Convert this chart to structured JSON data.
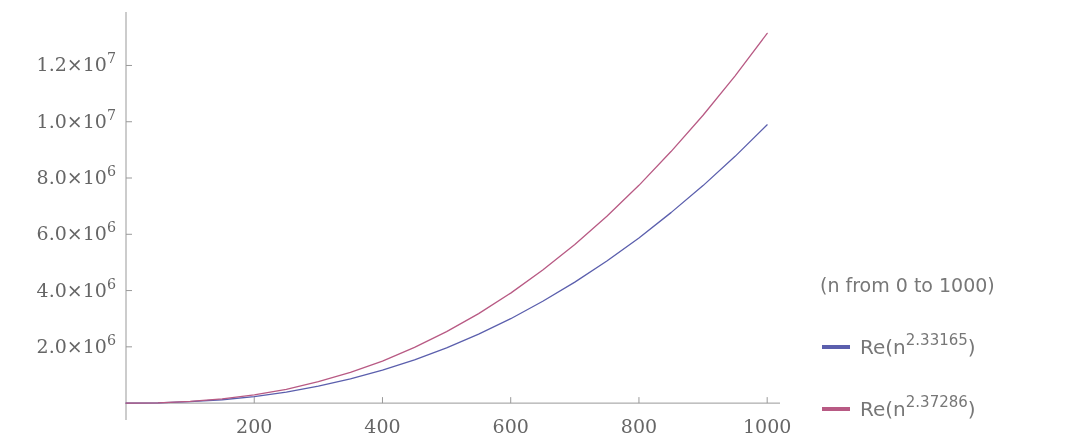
{
  "chart_data": {
    "type": "line",
    "legend_title": "(n from 0 to 1000)",
    "legend": "right",
    "grid": false,
    "x": [
      0,
      50,
      100,
      150,
      200,
      250,
      300,
      350,
      400,
      450,
      500,
      550,
      600,
      650,
      700,
      750,
      800,
      850,
      900,
      950,
      1000
    ],
    "series": [
      {
        "name": "Re(n$^{2.33165}$)",
        "color": "#5b5fad",
        "values": [
          0,
          10000,
          50000,
          120000,
          230000,
          390000,
          600000,
          860000,
          1170000,
          1540000,
          1960000,
          2450000,
          3000000,
          3620000,
          4300000,
          5050000,
          5870000,
          6770000,
          7730000,
          8770000,
          9890000
        ]
      },
      {
        "name": "Re(n$^{2.37286}$)",
        "color": "#b85a84",
        "values": [
          0,
          10000,
          60000,
          150000,
          290000,
          490000,
          760000,
          1090000,
          1490000,
          1980000,
          2540000,
          3180000,
          3910000,
          4730000,
          5640000,
          6640000,
          7740000,
          8940000,
          10230000,
          11630000,
          13140000
        ]
      }
    ],
    "xlim": [
      0,
      1020
    ],
    "xticks": [
      200,
      400,
      600,
      800,
      1000
    ],
    "ylim": [
      -600000,
      13900000
    ],
    "yticks": [
      {
        "value": 2000000,
        "label": "2.0×10$^{6}$"
      },
      {
        "value": 4000000,
        "label": "4.0×10$^{6}$"
      },
      {
        "value": 6000000,
        "label": "6.0×10$^{6}$"
      },
      {
        "value": 8000000,
        "label": "8.0×10$^{6}$"
      },
      {
        "value": 10000000,
        "label": "1.0×10$^{7}$"
      },
      {
        "value": 12000000,
        "label": "1.2×10$^{7}$"
      }
    ]
  }
}
